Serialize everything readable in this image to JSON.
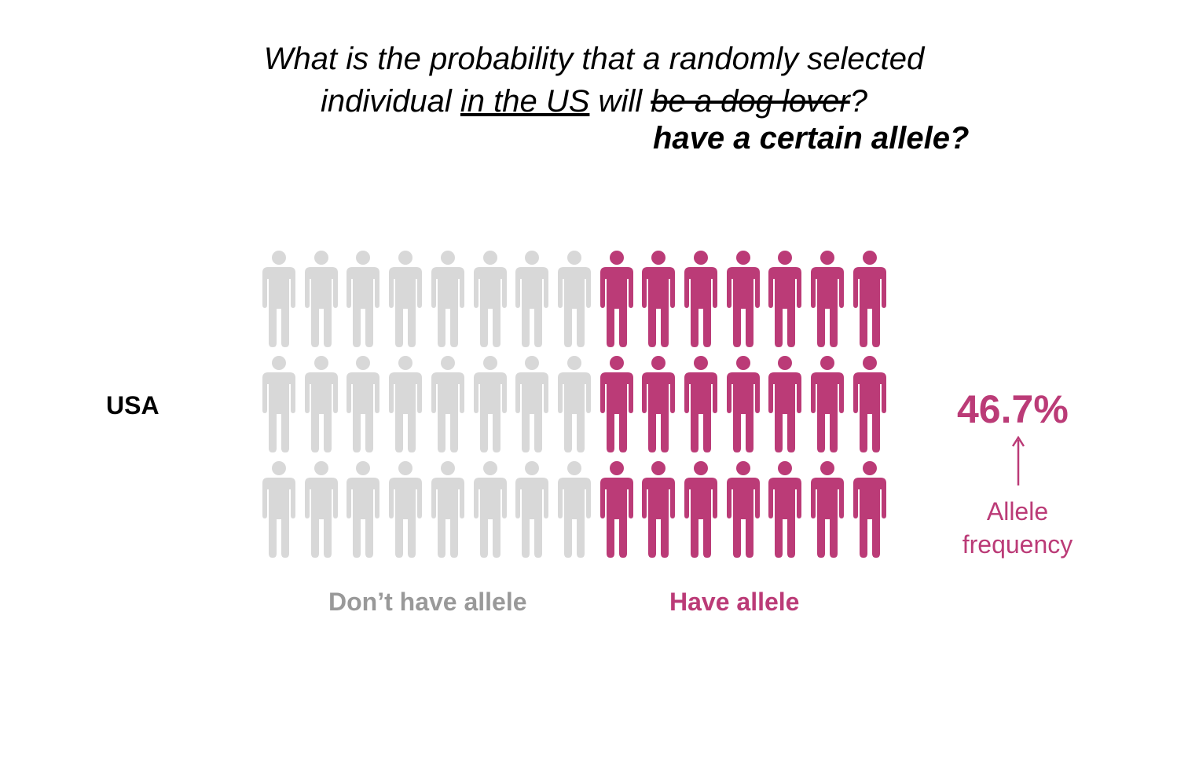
{
  "question": {
    "line1": "What is the probability that a randomly selected",
    "line2_pre": "individual ",
    "line2_underlined": "in the US",
    "line2_mid": " will ",
    "line2_struck": "be a dog lover",
    "line2_post": "?",
    "alternative": "have a certain allele?"
  },
  "population_label": "USA",
  "chart_data": {
    "type": "pictogram",
    "rows": 3,
    "columns": 15,
    "series": [
      {
        "name": "Don’t have allele",
        "count_per_row": 8,
        "color": "#d8d8d8"
      },
      {
        "name": "Have allele",
        "count_per_row": 7,
        "color": "#bb3b77"
      }
    ],
    "allele_frequency_percent": 46.7
  },
  "legend": {
    "negative": "Don’t have allele",
    "positive": "Have allele"
  },
  "annotation": {
    "value": "46.7%",
    "caption_line1": "Allele",
    "caption_line2": "frequency"
  },
  "colors": {
    "negative": "#d8d8d8",
    "negative_text": "#999999",
    "positive": "#bb3b77",
    "text": "#000000"
  }
}
